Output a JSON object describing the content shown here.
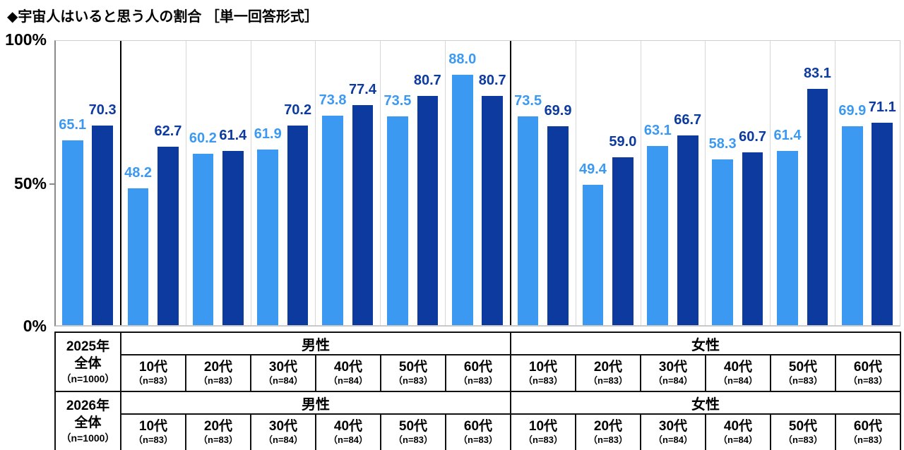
{
  "title": "◆宇宙人はいると思う人の割合 ［単一回答形式］",
  "y_axis": {
    "top": "100%",
    "mid": "50%",
    "bottom": "0%"
  },
  "chart_data": {
    "type": "bar",
    "title": "宇宙人はいると思う人の割合（単一回答形式）",
    "ylabel": "%",
    "ylim": [
      0,
      100
    ],
    "grid": false,
    "legend_position": "none",
    "categories": [
      "全体",
      "男性10代",
      "男性20代",
      "男性30代",
      "男性40代",
      "男性50代",
      "男性60代",
      "女性10代",
      "女性20代",
      "女性30代",
      "女性40代",
      "女性50代",
      "女性60代"
    ],
    "series": [
      {
        "name": "2025年",
        "color": "#3B99F2",
        "values": [
          65.1,
          48.2,
          60.2,
          61.9,
          73.8,
          73.5,
          88.0,
          73.5,
          49.4,
          63.1,
          58.3,
          61.4,
          69.9
        ]
      },
      {
        "name": "2026年",
        "color": "#0D3A9E",
        "values": [
          70.3,
          62.7,
          61.4,
          70.2,
          77.4,
          80.7,
          80.7,
          69.9,
          59.0,
          66.7,
          60.7,
          83.1,
          71.1
        ]
      }
    ],
    "group_separators_after": [
      0,
      6
    ]
  },
  "table": {
    "genders": [
      "男性",
      "女性"
    ],
    "year_rows": [
      {
        "year": "2025年",
        "group": "全体",
        "n": "（n=1000）"
      },
      {
        "year": "2026年",
        "group": "全体",
        "n": "（n=1000）"
      }
    ],
    "age_columns": [
      {
        "label": "10代",
        "n": "（n=83）"
      },
      {
        "label": "20代",
        "n": "（n=83）"
      },
      {
        "label": "30代",
        "n": "（n=84）"
      },
      {
        "label": "40代",
        "n": "（n=84）"
      },
      {
        "label": "50代",
        "n": "（n=83）"
      },
      {
        "label": "60代",
        "n": "（n=83）"
      },
      {
        "label": "10代",
        "n": "（n=83）"
      },
      {
        "label": "20代",
        "n": "（n=83）"
      },
      {
        "label": "30代",
        "n": "（n=84）"
      },
      {
        "label": "40代",
        "n": "（n=84）"
      },
      {
        "label": "50代",
        "n": "（n=83）"
      },
      {
        "label": "60代",
        "n": "（n=83）"
      }
    ]
  }
}
